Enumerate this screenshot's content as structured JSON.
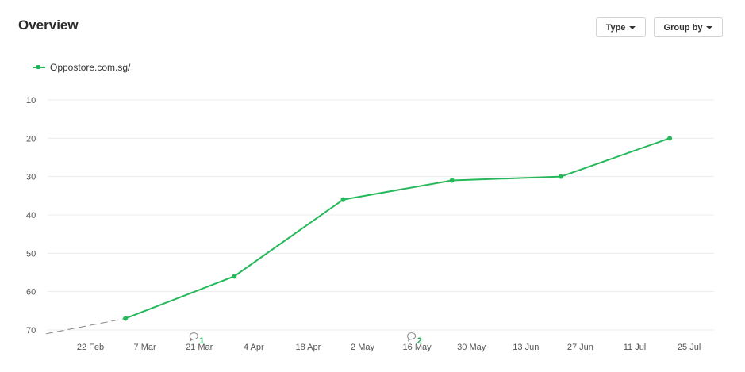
{
  "header": {
    "title": "Overview"
  },
  "toolbar": {
    "type_label": "Type",
    "group_label": "Group by"
  },
  "legend": {
    "label": "Oppostore.com.sg/",
    "color": "#25b85a"
  },
  "chart_data": {
    "type": "line",
    "y_reversed": true,
    "ylim": [
      8,
      73
    ],
    "y_ticks": [
      "10",
      "20",
      "30",
      "40",
      "50",
      "60",
      "70"
    ],
    "x_ticks": [
      "22 Feb",
      "7 Mar",
      "21 Mar",
      "4 Apr",
      "18 Apr",
      "2 May",
      "16 May",
      "30 May",
      "13 Jun",
      "27 Jun",
      "11 Jul",
      "25 Jul"
    ],
    "series": [
      {
        "name": "Oppostore.com.sg/",
        "color": "#25b85a",
        "points": [
          {
            "x": "2019-03-03",
            "y": 67
          },
          {
            "x": "2019-03-31",
            "y": 56
          },
          {
            "x": "2019-04-28",
            "y": 36
          },
          {
            "x": "2019-05-26",
            "y": 31
          },
          {
            "x": "2019-06-23",
            "y": 30
          },
          {
            "x": "2019-07-21",
            "y": 20
          }
        ]
      }
    ],
    "annotations": [
      {
        "x": "2019-03-21",
        "label": "1"
      },
      {
        "x": "2019-05-16",
        "label": "2"
      }
    ],
    "grid": true
  }
}
